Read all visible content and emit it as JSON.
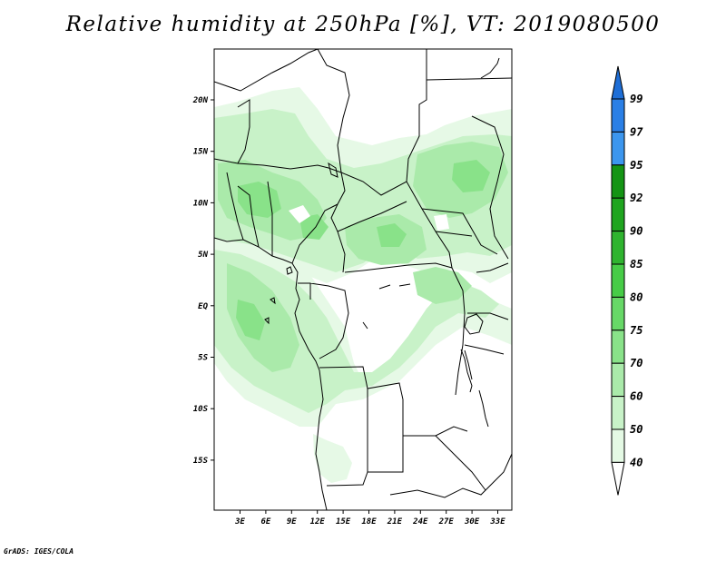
{
  "map": {
    "title": "Relative humidity at 250hPa [%], VT: 2019080500",
    "credit": "GrADS: IGES/COLA",
    "lat_labels": [
      "20N",
      "15N",
      "10N",
      "5N",
      "EQ",
      "5S",
      "10S",
      "15S"
    ],
    "lon_labels": [
      "3E",
      "6E",
      "9E",
      "12E",
      "15E",
      "18E",
      "21E",
      "24E",
      "27E",
      "30E",
      "33E"
    ]
  },
  "colorbar": {
    "labels": [
      "99",
      "97",
      "95",
      "92",
      "90",
      "85",
      "80",
      "75",
      "70",
      "60",
      "50",
      "40"
    ],
    "colors": [
      "#1e6ed6",
      "#2a7fe6",
      "#3c96ee",
      "#149414",
      "#1fa51f",
      "#2fb42f",
      "#47cc47",
      "#67d867",
      "#89e289",
      "#aaeaaa",
      "#c8f2c8",
      "#e4f9e4"
    ]
  },
  "fill_colors": {
    "light": "#e6f9e6",
    "pale": "#c8f2c8",
    "mid": "#aaeaaa",
    "strong": "#89e289"
  }
}
